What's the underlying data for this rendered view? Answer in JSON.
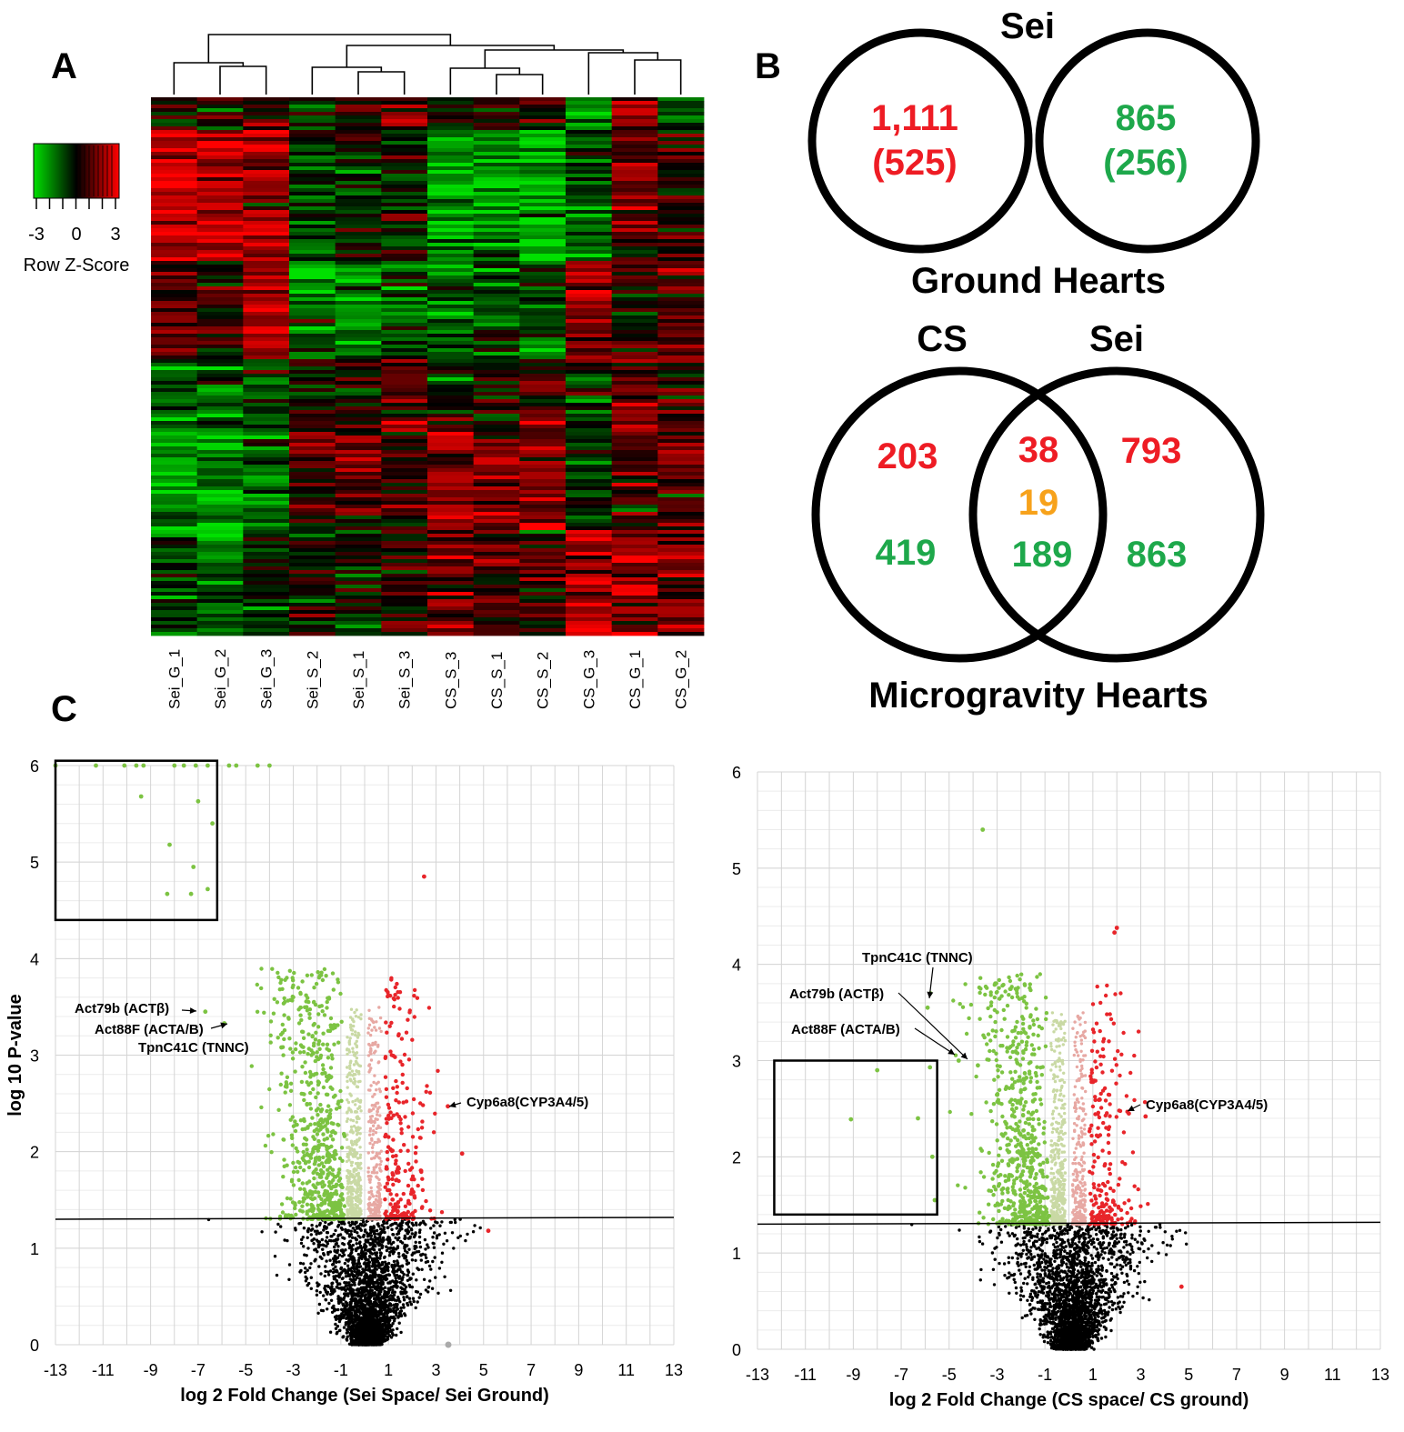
{
  "panels": {
    "a": "A",
    "b": "B",
    "c": "C"
  },
  "heatmap": {
    "legend_ticks": [
      "-3",
      "0",
      "3"
    ],
    "legend_title": "Row Z-Score",
    "samples": [
      "Sei_G_1",
      "Sei_G_2",
      "Sei_G_3",
      "Sei_S_2",
      "Sei_S_1",
      "Sei_S_3",
      "CS_S_3",
      "CS_S_1",
      "CS_S_2",
      "CS_G_3",
      "CS_G_1",
      "CS_G_2"
    ],
    "colors": {
      "low": "#00e000",
      "mid": "#000000",
      "high": "#ff0000"
    }
  },
  "venn": {
    "top": {
      "title": "Sei",
      "left_value": "1,111",
      "left_sub": "(525)",
      "right_value": "865",
      "right_sub": "(256)",
      "caption": "Ground Hearts"
    },
    "bottom": {
      "left_label": "CS",
      "right_label": "Sei",
      "left_up": "203",
      "left_down": "419",
      "middle_up": "38",
      "middle_both": "19",
      "middle_down": "189",
      "right_up": "793",
      "right_down": "863",
      "caption": "Microgravity Hearts"
    },
    "colors": {
      "up": "#ee1c24",
      "down": "#1ea84b",
      "both": "#f7a21b"
    }
  },
  "chart_data": [
    {
      "type": "scatter",
      "xlabel": "log 2 Fold Change (Sei Space/ Sei Ground)",
      "ylabel": "log 10 P-value",
      "xlim": [
        -13,
        13
      ],
      "ylim": [
        0,
        6
      ],
      "xticks": [
        "-13",
        "-11",
        "-9",
        "-7",
        "-5",
        "-3",
        "-1",
        "1",
        "3",
        "5",
        "7",
        "9",
        "11",
        "13"
      ],
      "yticks": [
        "0",
        "1",
        "2",
        "3",
        "4",
        "5",
        "6"
      ],
      "threshold": 1.3,
      "box": {
        "x": [
          -13,
          -6.2
        ],
        "y": [
          4.4,
          6.05
        ]
      },
      "annotations": [
        {
          "text": "Act79b (ACTβ)",
          "x": -6.7,
          "y": 3.45
        },
        {
          "text": "Act88F (ACTA/B)",
          "x": -5.9,
          "y": 3.33
        },
        {
          "text": "TpnC41C (TNNC)",
          "x": -3.5,
          "y": 3.08
        },
        {
          "text": "Cyp6a8(CYP3A4/5)",
          "x": 3.5,
          "y": 2.47
        }
      ],
      "highlight_points": [
        {
          "x": -13,
          "y": 6
        },
        {
          "x": -11.3,
          "y": 6
        },
        {
          "x": -10.1,
          "y": 6
        },
        {
          "x": -9.6,
          "y": 6
        },
        {
          "x": -9.3,
          "y": 6
        },
        {
          "x": -8.0,
          "y": 6
        },
        {
          "x": -7.6,
          "y": 6
        },
        {
          "x": -7.1,
          "y": 6
        },
        {
          "x": -6.6,
          "y": 6
        },
        {
          "x": -5.7,
          "y": 6
        },
        {
          "x": -5.4,
          "y": 6
        },
        {
          "x": -4.5,
          "y": 6
        },
        {
          "x": -4.0,
          "y": 6
        },
        {
          "x": -9.4,
          "y": 5.68
        },
        {
          "x": -7.0,
          "y": 5.63
        },
        {
          "x": -6.4,
          "y": 5.4
        },
        {
          "x": -8.2,
          "y": 5.18
        },
        {
          "x": -7.2,
          "y": 4.95
        },
        {
          "x": -6.6,
          "y": 4.72
        },
        {
          "x": -7.3,
          "y": 4.67
        },
        {
          "x": -8.3,
          "y": 4.67
        },
        {
          "x": -6.7,
          "y": 3.45
        },
        {
          "x": -5.9,
          "y": 3.33
        },
        {
          "x": -3.5,
          "y": 3.08
        },
        {
          "x": 2.5,
          "y": 4.85
        },
        {
          "x": 3.5,
          "y": 2.47
        },
        {
          "x": 4.1,
          "y": 1.98
        },
        {
          "x": 5.2,
          "y": 1.18
        }
      ]
    },
    {
      "type": "scatter",
      "xlabel": "log 2  Fold Change (CS space/ CS ground)",
      "ylabel": "",
      "xlim": [
        -13,
        13
      ],
      "ylim": [
        0,
        6
      ],
      "xticks": [
        "-13",
        "-11",
        "-9",
        "-7",
        "-5",
        "-3",
        "-1",
        "1",
        "3",
        "5",
        "7",
        "9",
        "11",
        "13"
      ],
      "yticks": [
        "0",
        "1",
        "2",
        "3",
        "4",
        "5",
        "6"
      ],
      "threshold": 1.3,
      "box": {
        "x": [
          -12.3,
          -5.5
        ],
        "y": [
          1.4,
          3.0
        ]
      },
      "annotations": [
        {
          "text": "TpnC41C (TNNC)",
          "x": -5.9,
          "y": 3.55
        },
        {
          "text": "Act79b (ACTβ)",
          "x": -3.8,
          "y": 2.95
        },
        {
          "text": "Act88F (ACTA/B)",
          "x": -4.6,
          "y": 3.0
        },
        {
          "text": "Cyp6a8(CYP3A4/5)",
          "x": 2.5,
          "y": 2.45
        }
      ],
      "highlight_points": [
        {
          "x": -3.6,
          "y": 5.4
        },
        {
          "x": -8.0,
          "y": 2.9
        },
        {
          "x": -9.1,
          "y": 2.39
        },
        {
          "x": -5.8,
          "y": 2.93
        },
        {
          "x": -6.3,
          "y": 2.4
        },
        {
          "x": -5.7,
          "y": 2.0
        },
        {
          "x": -5.6,
          "y": 1.55
        },
        {
          "x": -5.9,
          "y": 3.55
        },
        {
          "x": -3.8,
          "y": 2.95
        },
        {
          "x": -4.6,
          "y": 3.0
        },
        {
          "x": 2.0,
          "y": 4.38
        },
        {
          "x": 1.9,
          "y": 4.33
        },
        {
          "x": 2.5,
          "y": 2.45
        },
        {
          "x": 3.2,
          "y": 2.42
        },
        {
          "x": 4.7,
          "y": 0.65
        }
      ]
    }
  ]
}
